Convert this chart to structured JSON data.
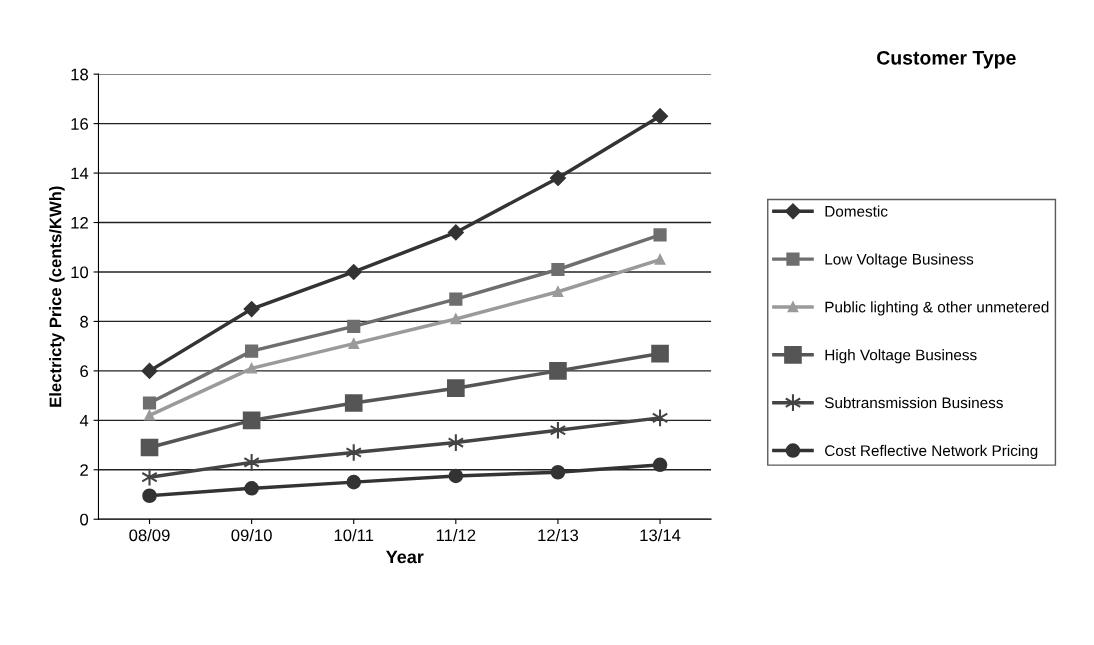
{
  "chart_data": {
    "type": "line",
    "xlabel": "Year",
    "ylabel": "Electricty Price (cents/KWh)",
    "legend_title": "Customer Type",
    "categories": [
      "08/09",
      "09/10",
      "10/11",
      "11/12",
      "12/13",
      "13/14"
    ],
    "series": [
      {
        "name": "Domestic",
        "color": "#333333",
        "marker": "diamond",
        "values": [
          6.0,
          8.5,
          10.0,
          11.6,
          13.8,
          16.3
        ]
      },
      {
        "name": "Low Voltage Business",
        "color": "#6e6e6e",
        "marker": "square",
        "values": [
          4.7,
          6.8,
          7.8,
          8.9,
          10.1,
          11.5
        ]
      },
      {
        "name": "Public lighting & other unmetered",
        "color": "#9a9a9a",
        "marker": "triangle",
        "values": [
          4.2,
          6.1,
          7.1,
          8.1,
          9.2,
          10.5
        ]
      },
      {
        "name": "High Voltage Business",
        "color": "#555555",
        "marker": "square",
        "values": [
          2.9,
          4.0,
          4.7,
          5.3,
          6.0,
          6.7
        ]
      },
      {
        "name": "Subtransmission Business",
        "color": "#444444",
        "marker": "cross",
        "values": [
          1.7,
          2.3,
          2.7,
          3.1,
          3.6,
          4.1
        ]
      },
      {
        "name": "Cost Reflective Network Pricing",
        "color": "#333333",
        "marker": "circle",
        "values": [
          0.95,
          1.25,
          1.5,
          1.75,
          1.9,
          2.2
        ]
      }
    ],
    "ylim": [
      0,
      18
    ],
    "yticks": [
      0,
      2,
      4,
      6,
      8,
      10,
      12,
      14,
      16,
      18
    ],
    "grid": "y",
    "legend": "right",
    "line_style": "solid"
  }
}
